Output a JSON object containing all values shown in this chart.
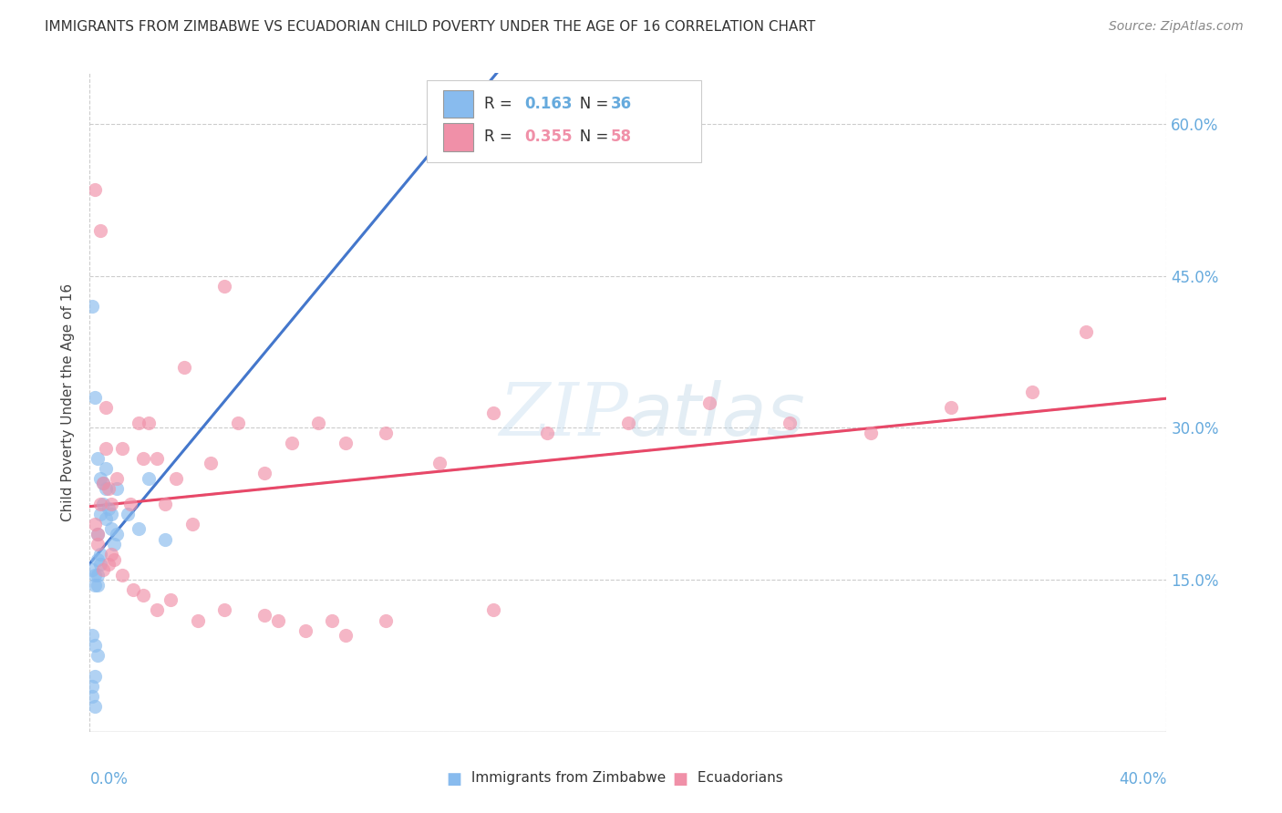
{
  "title": "IMMIGRANTS FROM ZIMBABWE VS ECUADORIAN CHILD POVERTY UNDER THE AGE OF 16 CORRELATION CHART",
  "source": "Source: ZipAtlas.com",
  "ylabel": "Child Poverty Under the Age of 16",
  "xlim": [
    0.0,
    0.4
  ],
  "ylim": [
    0.0,
    0.65
  ],
  "y_ticks": [
    0.0,
    0.15,
    0.3,
    0.45,
    0.6
  ],
  "y_tick_labels_right": [
    "",
    "15.0%",
    "30.0%",
    "45.0%",
    "60.0%"
  ],
  "scatter_blue_color": "#88bbee",
  "scatter_pink_color": "#f090a8",
  "trend_blue_color": "#4477cc",
  "trend_pink_color": "#e84868",
  "trend_dashed_color": "#b8c8d8",
  "axis_label_color": "#66aadd",
  "grid_color": "#cccccc",
  "title_color": "#333333",
  "source_color": "#888888",
  "legend_r1": "0.163",
  "legend_n1": "36",
  "legend_r2": "0.355",
  "legend_n2": "58",
  "zim_x": [
    0.002,
    0.003,
    0.004,
    0.005,
    0.006,
    0.007,
    0.008,
    0.009,
    0.01,
    0.003,
    0.004,
    0.005,
    0.006,
    0.003,
    0.004,
    0.006,
    0.008,
    0.01,
    0.014,
    0.018,
    0.022,
    0.028,
    0.002,
    0.003,
    0.004,
    0.002,
    0.003,
    0.001,
    0.001,
    0.002,
    0.003,
    0.002,
    0.001,
    0.001,
    0.002,
    0.001
  ],
  "zim_y": [
    0.33,
    0.195,
    0.215,
    0.225,
    0.24,
    0.22,
    0.2,
    0.185,
    0.195,
    0.27,
    0.25,
    0.245,
    0.26,
    0.17,
    0.165,
    0.21,
    0.215,
    0.24,
    0.215,
    0.2,
    0.25,
    0.19,
    0.155,
    0.155,
    0.175,
    0.145,
    0.145,
    0.16,
    0.095,
    0.085,
    0.075,
    0.055,
    0.045,
    0.035,
    0.025,
    0.42
  ],
  "ecu_x": [
    0.002,
    0.003,
    0.004,
    0.005,
    0.006,
    0.007,
    0.008,
    0.01,
    0.012,
    0.015,
    0.018,
    0.02,
    0.022,
    0.025,
    0.028,
    0.032,
    0.038,
    0.045,
    0.055,
    0.065,
    0.075,
    0.085,
    0.095,
    0.11,
    0.13,
    0.15,
    0.17,
    0.2,
    0.23,
    0.26,
    0.29,
    0.32,
    0.35,
    0.37,
    0.003,
    0.005,
    0.007,
    0.009,
    0.012,
    0.016,
    0.02,
    0.025,
    0.03,
    0.04,
    0.05,
    0.065,
    0.08,
    0.095,
    0.002,
    0.004,
    0.006,
    0.008,
    0.035,
    0.05,
    0.07,
    0.09,
    0.11,
    0.15
  ],
  "ecu_y": [
    0.205,
    0.195,
    0.225,
    0.245,
    0.28,
    0.24,
    0.225,
    0.25,
    0.28,
    0.225,
    0.305,
    0.27,
    0.305,
    0.27,
    0.225,
    0.25,
    0.205,
    0.265,
    0.305,
    0.255,
    0.285,
    0.305,
    0.285,
    0.295,
    0.265,
    0.315,
    0.295,
    0.305,
    0.325,
    0.305,
    0.295,
    0.32,
    0.335,
    0.395,
    0.185,
    0.16,
    0.165,
    0.17,
    0.155,
    0.14,
    0.135,
    0.12,
    0.13,
    0.11,
    0.12,
    0.115,
    0.1,
    0.095,
    0.535,
    0.495,
    0.32,
    0.175,
    0.36,
    0.44,
    0.11,
    0.11,
    0.11,
    0.12
  ]
}
